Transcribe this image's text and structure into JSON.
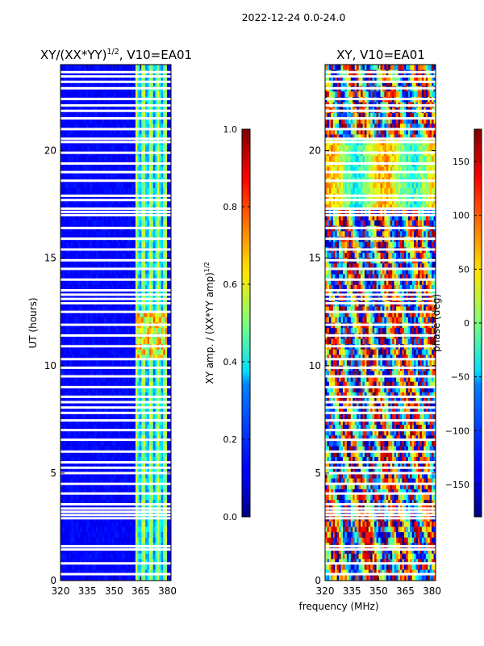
{
  "suptitle": "2022-12-24 0.0-24.0",
  "chart_data": [
    {
      "type": "heatmap",
      "title": "XY/(XX*YY)",
      "title_exponent": "1/2",
      "title_suffix": ", V10=EA01",
      "xlabel": "",
      "ylabel": "UT (hours)",
      "xlim": [
        320,
        382
      ],
      "ylim": [
        0,
        24
      ],
      "xticks": [
        "320",
        "335",
        "350",
        "365",
        "380"
      ],
      "xtick_values": [
        320,
        335,
        350,
        365,
        380
      ],
      "yticks": [
        "0",
        "5",
        "10",
        "15",
        "20"
      ],
      "ytick_values": [
        0,
        5,
        10,
        15,
        20
      ],
      "colorbar": {
        "label": "XY amp. / (XX*YY amp)",
        "label_exponent": "1/2",
        "range": [
          0.0,
          1.0
        ],
        "ticks": [
          "0.0",
          "0.2",
          "0.4",
          "0.6",
          "0.8",
          "1.0"
        ],
        "tick_values": [
          0.0,
          0.2,
          0.4,
          0.6,
          0.8,
          1.0
        ],
        "colormap": "jet"
      },
      "features": {
        "background_value": 0.1,
        "active_band_mhz": [
          362,
          380
        ],
        "active_band_value": 0.35,
        "hot_band_hours": [
          10.2,
          12.4
        ],
        "hot_band_value": 0.8
      }
    },
    {
      "type": "heatmap",
      "title": "XY, V10=EA01",
      "xlabel": "frequency (MHz)",
      "ylabel": "",
      "xlim": [
        320,
        382
      ],
      "ylim": [
        0,
        24
      ],
      "xticks": [
        "320",
        "335",
        "350",
        "365",
        "380"
      ],
      "xtick_values": [
        320,
        335,
        350,
        365,
        380
      ],
      "yticks": [
        "0",
        "5",
        "10",
        "15",
        "20"
      ],
      "ytick_values": [
        0,
        5,
        10,
        15,
        20
      ],
      "colorbar": {
        "label": "phase (deg)",
        "range": [
          -180,
          180
        ],
        "ticks": [
          "−150",
          "−100",
          "−50",
          "0",
          "50",
          "100",
          "150"
        ],
        "tick_values": [
          -150,
          -100,
          -50,
          0,
          50,
          100,
          150
        ],
        "colormap": "jet"
      }
    }
  ],
  "gap_hours": [
    0.3,
    0.8,
    1.45,
    1.6,
    2.9,
    3.05,
    3.2,
    3.35,
    3.55,
    4.05,
    4.5,
    5.0,
    5.25,
    5.5,
    6.0,
    6.55,
    7.0,
    7.45,
    7.8,
    8.05,
    8.3,
    8.55,
    9.0,
    9.5,
    9.9,
    10.3,
    10.9,
    11.4,
    11.9,
    12.5,
    12.9,
    13.1,
    13.3,
    13.5,
    14.0,
    14.5,
    14.9,
    15.4,
    15.9,
    16.4,
    17.0,
    17.15,
    17.3,
    17.7,
    17.9,
    18.6,
    19.0,
    19.4,
    19.9,
    20.4,
    20.55,
    21.0,
    21.5,
    21.85,
    22.1,
    22.4,
    22.9,
    23.2,
    23.45,
    23.65
  ]
}
